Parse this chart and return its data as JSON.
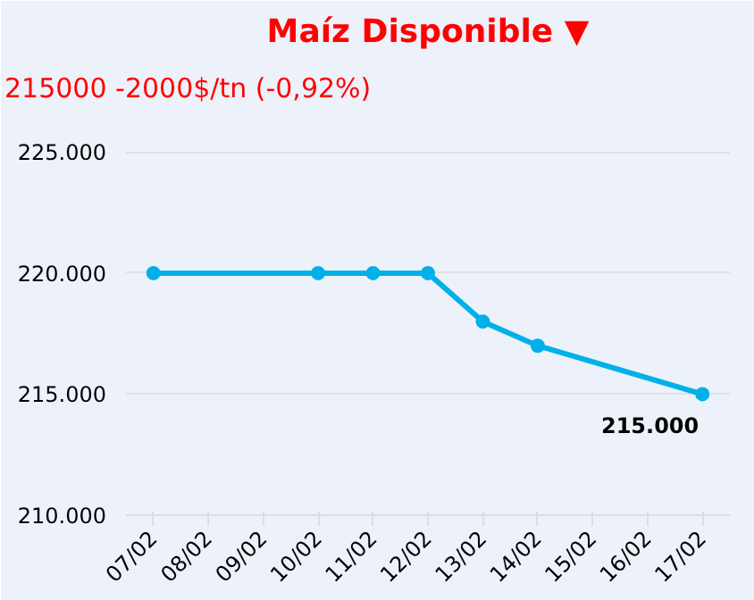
{
  "chart_data": {
    "type": "line",
    "title": "Maíz Disponible ▼",
    "subtitle": "215000 -2000$/tn (-0,92%)",
    "categories": [
      "07/02",
      "08/02",
      "09/02",
      "10/02",
      "11/02",
      "12/02",
      "13/02",
      "14/02",
      "15/02",
      "16/02",
      "17/02"
    ],
    "series": [
      {
        "color": "#00b0e8",
        "values": [
          220000,
          null,
          null,
          220000,
          220000,
          220000,
          218000,
          217000,
          null,
          null,
          215000
        ]
      }
    ],
    "annotations": [
      {
        "text": "215.000",
        "x": "17/02",
        "y": 215000
      }
    ],
    "ylim": [
      210000,
      226600
    ],
    "yticks": [
      {
        "value": 210000,
        "label": "210.000"
      },
      {
        "value": 215000,
        "label": "215.000"
      },
      {
        "value": 220000,
        "label": "220.000"
      },
      {
        "value": 225000,
        "label": "225.000"
      }
    ],
    "grid": "y",
    "marker": "circle",
    "line_style": "solid"
  }
}
